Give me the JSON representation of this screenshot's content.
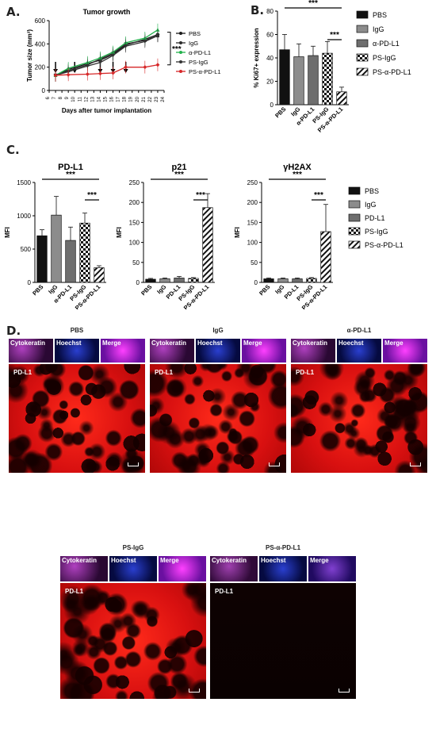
{
  "panels": {
    "a": "A.",
    "b": "B.",
    "c": "C.",
    "d": "D."
  },
  "chart_data": [
    {
      "type": "line",
      "id": "A",
      "title": "Tumor growth",
      "xlabel": "Days after tumor implantation",
      "ylabel": "Tumor size (mm³)",
      "ylim": [
        0,
        600
      ],
      "yticks": [
        "0",
        "200",
        "400",
        "600"
      ],
      "x": [
        6,
        7,
        9,
        10,
        11,
        12,
        13,
        14,
        15,
        16,
        17,
        18,
        19,
        20,
        21,
        22,
        23,
        24
      ],
      "xticks": [
        "6",
        "7",
        "8",
        "9",
        "10",
        "11",
        "12",
        "13",
        "14",
        "15",
        "16",
        "17",
        "18",
        "19",
        "20",
        "21",
        "22",
        "23",
        "24"
      ],
      "arrow_days": [
        7,
        10,
        14,
        16,
        18
      ],
      "significance": "***",
      "series": [
        {
          "name": "PBS",
          "color": "#1a1a1a",
          "marker": "circle",
          "x": [
            7,
            9,
            12,
            14,
            16,
            18,
            21,
            23
          ],
          "values": [
            130,
            180,
            230,
            260,
            310,
            390,
            440,
            480
          ]
        },
        {
          "name": "IgG",
          "color": "#2a2a2a",
          "marker": "square",
          "x": [
            7,
            9,
            12,
            14,
            16,
            18,
            21,
            23
          ],
          "values": [
            130,
            170,
            220,
            270,
            320,
            400,
            430,
            470
          ]
        },
        {
          "name": "α-PD-L1",
          "color": "#22b14c",
          "marker": "triangle",
          "x": [
            7,
            9,
            12,
            14,
            16,
            18,
            21,
            23
          ],
          "values": [
            130,
            190,
            240,
            280,
            330,
            410,
            450,
            520
          ]
        },
        {
          "name": "PS-IgG",
          "color": "#333333",
          "marker": "triangle-down",
          "x": [
            7,
            9,
            12,
            14,
            16,
            18,
            21,
            23
          ],
          "values": [
            130,
            160,
            210,
            240,
            300,
            380,
            420,
            470
          ]
        },
        {
          "name": "PS-α-PD-L1",
          "color": "#d62728",
          "marker": "diamond",
          "x": [
            7,
            9,
            12,
            14,
            16,
            18,
            21,
            23
          ],
          "values": [
            130,
            135,
            140,
            145,
            150,
            200,
            200,
            220
          ]
        }
      ]
    },
    {
      "type": "bar",
      "id": "B",
      "ylabel": "% Ki67+ expression",
      "ylim": [
        0,
        80
      ],
      "yticks": [
        "0",
        "20",
        "40",
        "60",
        "80"
      ],
      "categories": [
        "PBS",
        "IgG",
        "α-PD-L1",
        "PS-IgG",
        "PS-α-PD-L1"
      ],
      "values": [
        47,
        41,
        42,
        44,
        11
      ],
      "errors": [
        13,
        11,
        8,
        10,
        4
      ],
      "significance": [
        "***",
        "***"
      ],
      "legend": [
        "PBS",
        "IgG",
        "α-PD-L1",
        "PS-IgG",
        "PS-α-PD-L1"
      ]
    },
    {
      "type": "bar",
      "id": "C1",
      "title": "PD-L1",
      "ylabel": "MFI",
      "ylim": [
        0,
        1500
      ],
      "yticks": [
        "0",
        "500",
        "1000",
        "1500"
      ],
      "categories": [
        "PBS",
        "IgG",
        "α-PD-L1",
        "PS-IgG",
        "PS-α-PD-L1"
      ],
      "values": [
        700,
        1010,
        630,
        890,
        220
      ],
      "errors": [
        90,
        280,
        200,
        150,
        30
      ],
      "significance": [
        "***",
        "***"
      ]
    },
    {
      "type": "bar",
      "id": "C2",
      "title": "p21",
      "ylabel": "MFI",
      "ylim": [
        0,
        250
      ],
      "yticks": [
        "0",
        "50",
        "100",
        "150",
        "200",
        "250"
      ],
      "categories": [
        "PBS",
        "IgG",
        "PD-L1",
        "PS-IgG",
        "PS-α-PD-L1"
      ],
      "values": [
        8,
        9,
        11,
        10,
        187
      ],
      "errors": [
        2,
        2,
        4,
        2,
        35
      ],
      "significance": [
        "***",
        "***"
      ]
    },
    {
      "type": "bar",
      "id": "C3",
      "title": "γH2AX",
      "ylabel": "MFI",
      "ylim": [
        0,
        250
      ],
      "yticks": [
        "0",
        "50",
        "100",
        "150",
        "200",
        "250"
      ],
      "categories": [
        "PBS",
        "IgG",
        "PD-L1",
        "PS-IgG",
        "PS-α-PD-L1"
      ],
      "values": [
        9,
        9,
        9,
        10,
        127
      ],
      "errors": [
        2,
        2,
        2,
        2,
        68
      ],
      "significance": [
        "***",
        "***"
      ],
      "legend": [
        "PBS",
        "IgG",
        "PD-L1",
        "PS-IgG",
        "PS-α-PD-L1"
      ]
    }
  ],
  "micrographs": [
    {
      "title": "PBS",
      "cyto": "Cytokeratin",
      "hoechst": "Hoechst",
      "merge": "Merge",
      "main": "PD-L1",
      "signal": "high"
    },
    {
      "title": "IgG",
      "cyto": "Cytokeratin",
      "hoechst": "Hoechst",
      "merge": "Merge",
      "main": "PD-L1",
      "signal": "high"
    },
    {
      "title": "α-PD-L1",
      "cyto": "Cytokeratin",
      "hoechst": "Hoechst",
      "merge": "Merge",
      "main": "PD-L1",
      "signal": "high"
    },
    {
      "title": "PS-IgG",
      "cyto": "Cytokeratin",
      "hoechst": "Hoechst",
      "merge": "Merge",
      "main": "PD-L1",
      "signal": "high"
    },
    {
      "title": "PS-α-PD-L1",
      "cyto": "Cytokeratin",
      "hoechst": "Hoechst",
      "merge": "Merge",
      "main": "PD-L1",
      "signal": "low"
    }
  ]
}
